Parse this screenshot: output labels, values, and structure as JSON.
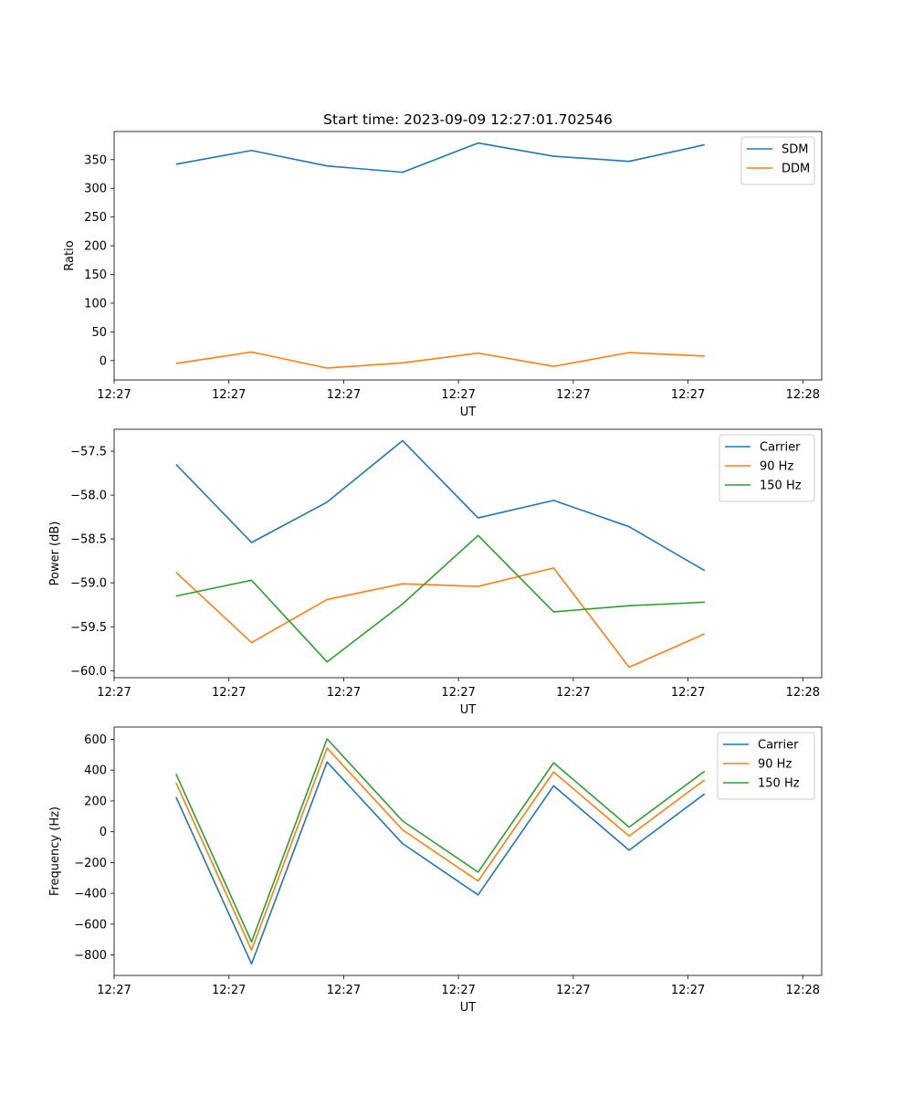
{
  "chart_data": [
    {
      "type": "line",
      "title": "Start time: 2023-09-09 12:27:01.702546",
      "xlabel": "UT",
      "ylabel": "Ratio",
      "xtick_labels": [
        "12:27",
        "12:27",
        "12:27",
        "12:27",
        "12:27",
        "12:27",
        "12:27"
      ],
      "xtick_last_label": "12:28",
      "ylim": [
        -33.7,
        399
      ],
      "yticks": [
        0,
        50,
        100,
        150,
        200,
        250,
        300,
        350
      ],
      "legend_position": "top-right",
      "x": [
        1,
        2,
        3,
        4,
        5,
        6,
        7,
        8
      ],
      "series": [
        {
          "name": "SDM",
          "color": "#1f77b4",
          "values": [
            342,
            366,
            339,
            328,
            379,
            356,
            347,
            376
          ]
        },
        {
          "name": "DDM",
          "color": "#ff7f0e",
          "values": [
            -5,
            15,
            -13,
            -4,
            13,
            -10,
            14,
            8
          ]
        }
      ]
    },
    {
      "type": "line",
      "title": "",
      "xlabel": "UT",
      "ylabel": "Power (dB)",
      "xtick_labels": [
        "12:27",
        "12:27",
        "12:27",
        "12:27",
        "12:27",
        "12:27",
        "12:27"
      ],
      "xtick_last_label": "12:28",
      "ylim": [
        -60.08,
        -57.25
      ],
      "yticks": [
        -60.0,
        -59.5,
        -59.0,
        -58.5,
        -58.0,
        -57.5
      ],
      "legend_position": "top-right",
      "x": [
        1,
        2,
        3,
        4,
        5,
        6,
        7,
        8
      ],
      "series": [
        {
          "name": "Carrier",
          "color": "#1f77b4",
          "values": [
            -57.65,
            -58.54,
            -58.08,
            -57.38,
            -58.26,
            -58.06,
            -58.36,
            -58.86
          ]
        },
        {
          "name": "90 Hz",
          "color": "#ff7f0e",
          "values": [
            -58.88,
            -59.68,
            -59.19,
            -59.01,
            -59.04,
            -58.83,
            -59.96,
            -59.58
          ]
        },
        {
          "name": "150 Hz",
          "color": "#2ca02c",
          "values": [
            -59.15,
            -58.97,
            -59.9,
            -59.24,
            -58.46,
            -59.33,
            -59.26,
            -59.22
          ]
        }
      ]
    },
    {
      "type": "line",
      "title": "",
      "xlabel": "UT",
      "ylabel": "Frequency (Hz)",
      "xtick_labels": [
        "12:27",
        "12:27",
        "12:27",
        "12:27",
        "12:27",
        "12:27",
        "12:27"
      ],
      "xtick_last_label": "12:28",
      "ylim": [
        -933,
        680
      ],
      "yticks": [
        -800,
        -600,
        -400,
        -200,
        0,
        200,
        400,
        600
      ],
      "legend_position": "top-right",
      "x": [
        1,
        2,
        3,
        4,
        5,
        6,
        7,
        8
      ],
      "series": [
        {
          "name": "Carrier",
          "color": "#1f77b4",
          "values": [
            225,
            -858,
            453,
            -77,
            -410,
            298,
            -120,
            246
          ]
        },
        {
          "name": "90 Hz",
          "color": "#ff7f0e",
          "values": [
            318,
            -768,
            543,
            12,
            -320,
            388,
            -28,
            337
          ]
        },
        {
          "name": "150 Hz",
          "color": "#2ca02c",
          "values": [
            375,
            -715,
            603,
            70,
            -262,
            448,
            30,
            393
          ]
        }
      ]
    }
  ]
}
